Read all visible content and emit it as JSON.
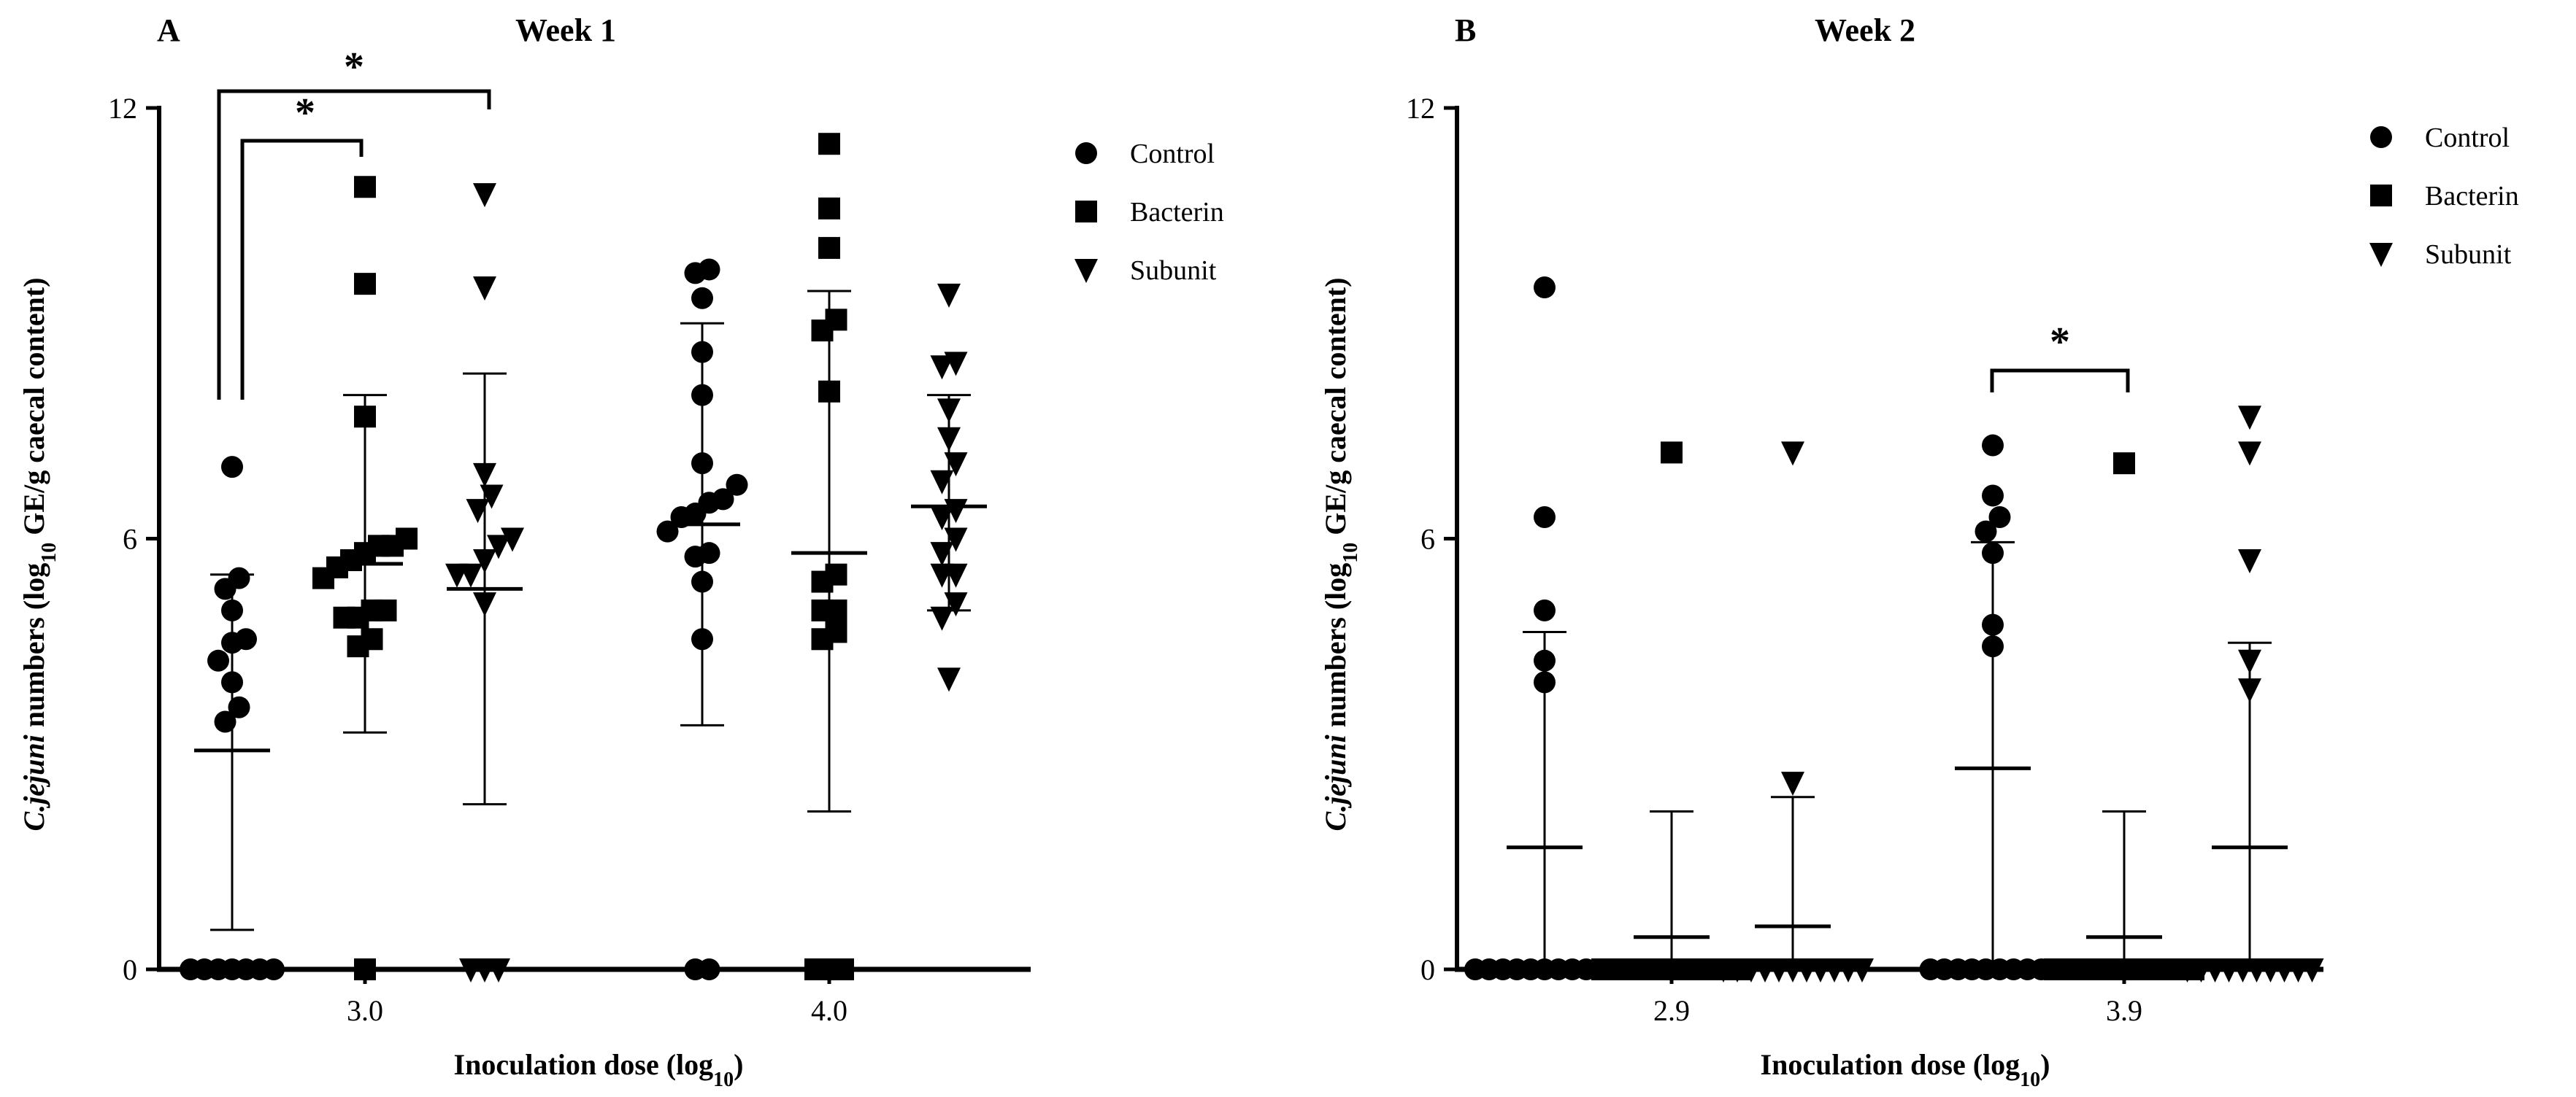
{
  "chart_data": [
    {
      "type": "scatter",
      "panel_label": "A",
      "title": "Week 1",
      "xlabel": "Inoculation dose (log",
      "xlabel_sub": "10",
      "xlabel_end": ")",
      "ylabel_parts": [
        "C.jejuni",
        " numbers (log",
        "10",
        " GE/g caecal content)"
      ],
      "ylim": [
        0,
        12
      ],
      "yticks": [
        "0",
        "6",
        "12"
      ],
      "categories": [
        "3.0",
        "4.0"
      ],
      "legend": [
        "Control",
        "Bacterin",
        "Subunit"
      ],
      "series": [
        {
          "name": "Control",
          "marker": "circle",
          "groups": [
            {
              "category": "3.0",
              "mean": 3.05,
              "sd_low": 0.55,
              "sd_high": 5.5,
              "values": [
                0,
                0,
                0,
                0,
                0,
                0,
                0,
                3.45,
                3.65,
                4.0,
                4.3,
                4.55,
                4.6,
                5.0,
                5.3,
                5.45,
                7.0
              ]
            },
            {
              "category": "4.0",
              "mean": 6.2,
              "sd_low": 3.4,
              "sd_high": 9.0,
              "values": [
                0,
                0,
                4.6,
                5.4,
                5.75,
                5.8,
                6.1,
                6.3,
                6.35,
                6.5,
                6.55,
                6.75,
                7.05,
                8.0,
                8.6,
                9.35,
                9.7,
                9.75
              ]
            }
          ]
        },
        {
          "name": "Bacterin",
          "marker": "square",
          "groups": [
            {
              "category": "3.0",
              "mean": 5.65,
              "sd_low": 3.3,
              "sd_high": 8.0,
              "values": [
                0,
                4.5,
                4.6,
                4.9,
                4.9,
                5.0,
                5.0,
                5.45,
                5.6,
                5.7,
                5.8,
                5.9,
                5.9,
                6.0,
                7.7,
                9.55,
                10.9
              ]
            },
            {
              "category": "4.0",
              "mean": 5.8,
              "sd_low": 2.2,
              "sd_high": 9.45,
              "values": [
                0,
                0,
                0,
                4.6,
                4.7,
                5.0,
                5.0,
                5.4,
                5.5,
                8.05,
                8.9,
                9.05,
                10.05,
                10.6,
                11.5
              ]
            }
          ]
        },
        {
          "name": "Subunit",
          "marker": "triangle-down",
          "groups": [
            {
              "category": "3.0",
              "mean": 5.3,
              "sd_low": 2.3,
              "sd_high": 8.3,
              "values": [
                0,
                0,
                0,
                5.1,
                5.5,
                5.5,
                5.7,
                5.9,
                6.0,
                6.4,
                6.6,
                6.9,
                9.5,
                10.8
              ]
            },
            {
              "category": "4.0",
              "mean": 6.45,
              "sd_low": 5.0,
              "sd_high": 8.0,
              "values": [
                4.05,
                4.9,
                5.1,
                5.5,
                5.5,
                5.8,
                6.0,
                6.3,
                6.4,
                6.8,
                7.05,
                7.4,
                7.8,
                8.4,
                8.45,
                9.4
              ]
            }
          ]
        }
      ],
      "annotations": [
        {
          "text": "*",
          "from": "Control 3.0",
          "to": "Bacterin 3.0"
        },
        {
          "text": "*",
          "from": "Control 3.0",
          "to": "Subunit 3.0"
        }
      ]
    },
    {
      "type": "scatter",
      "panel_label": "B",
      "title": "Week 2",
      "xlabel": "Inoculation dose (log",
      "xlabel_sub": "10",
      "xlabel_end": ")",
      "ylabel_parts": [
        "C.jejuni",
        " numbers (log",
        "10",
        " GE/g caecal content)"
      ],
      "ylim": [
        0,
        12
      ],
      "yticks": [
        "0",
        "6",
        "12"
      ],
      "categories": [
        "2.9",
        "3.9"
      ],
      "legend": [
        "Control",
        "Bacterin",
        "Subunit"
      ],
      "series": [
        {
          "name": "Control",
          "marker": "circle",
          "groups": [
            {
              "category": "2.9",
              "mean": 1.7,
              "sd_low": 0,
              "sd_high": 4.7,
              "values": [
                0,
                0,
                0,
                0,
                0,
                0,
                0,
                0,
                0,
                0,
                0,
                4.0,
                4.3,
                5.0,
                6.3,
                9.5
              ]
            },
            {
              "category": "3.9",
              "mean": 2.8,
              "sd_low": 0,
              "sd_high": 5.95,
              "values": [
                0,
                0,
                0,
                0,
                0,
                0,
                0,
                0,
                0,
                0,
                4.5,
                4.8,
                5.8,
                6.1,
                6.3,
                6.6,
                7.3
              ]
            }
          ]
        },
        {
          "name": "Bacterin",
          "marker": "square",
          "groups": [
            {
              "category": "2.9",
              "mean": 0.45,
              "sd_low": 0,
              "sd_high": 2.2,
              "values": [
                0,
                0,
                0,
                0,
                0,
                0,
                0,
                0,
                0,
                0,
                0,
                7.2
              ]
            },
            {
              "category": "3.9",
              "mean": 0.45,
              "sd_low": 0,
              "sd_high": 2.2,
              "values": [
                0,
                0,
                0,
                0,
                0,
                0,
                0,
                0,
                0,
                0,
                0,
                7.05
              ]
            }
          ]
        },
        {
          "name": "Subunit",
          "marker": "triangle-down",
          "groups": [
            {
              "category": "2.9",
              "mean": 0.6,
              "sd_low": 0,
              "sd_high": 2.4,
              "values": [
                0,
                0,
                0,
                0,
                0,
                0,
                0,
                0,
                0,
                0,
                0,
                2.6,
                7.2
              ]
            },
            {
              "category": "3.9",
              "mean": 1.7,
              "sd_low": 0,
              "sd_high": 4.55,
              "values": [
                0,
                0,
                0,
                0,
                0,
                0,
                0,
                0,
                0,
                0,
                3.9,
                4.3,
                5.7,
                7.2,
                7.7
              ]
            }
          ]
        }
      ],
      "annotations": [
        {
          "text": "*",
          "from": "Control 3.9",
          "to": "Bacterin 3.9"
        }
      ]
    }
  ]
}
